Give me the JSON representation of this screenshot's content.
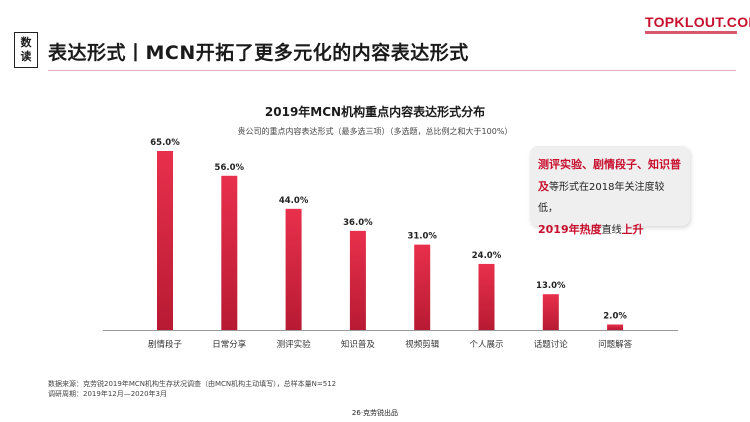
{
  "header": {
    "badge_top": "数",
    "badge_bottom": "读",
    "title": "表达形式丨MCN开拓了更多元化的内容表达形式",
    "logo_text": "TOPKLOUT.COM"
  },
  "chart_data": {
    "type": "bar",
    "title": "2019年MCN机构重点内容表达形式分布",
    "subtitle": "贵公司的重点内容表达形式（最多选三项）（多选题，总比例之和大于100%）",
    "categories": [
      "剧情段子",
      "日常分享",
      "测评实验",
      "知识普及",
      "视频剪辑",
      "个人展示",
      "话题讨论",
      "问题解答"
    ],
    "values": [
      65.0,
      56.0,
      44.0,
      36.0,
      31.0,
      24.0,
      13.0,
      2.0
    ],
    "value_labels": [
      "65.0%",
      "56.0%",
      "44.0%",
      "36.0%",
      "31.0%",
      "24.0%",
      "13.0%",
      "2.0%"
    ],
    "ylim": [
      0,
      70
    ],
    "grid": false,
    "colors": {
      "bar_top": "#e8304c",
      "bar_bottom": "#b81a33",
      "axis": "#999999"
    }
  },
  "callout": {
    "line1_highlight": "测评实验、剧情段子、知识普",
    "line2_highlight": "及",
    "line2_rest": "等形式在2018年关注度较低，",
    "line3_highlight": "2019年热度",
    "line3_rest": "直线",
    "line3_end": "上升"
  },
  "footer": {
    "source": "数据来源：克劳锐2019年MCN机构生存状况调查（由MCN机构主动填写），总样本量N=512",
    "period": "调研周期：2019年12月—2020年3月"
  },
  "page_number": "26·克劳锐出品"
}
